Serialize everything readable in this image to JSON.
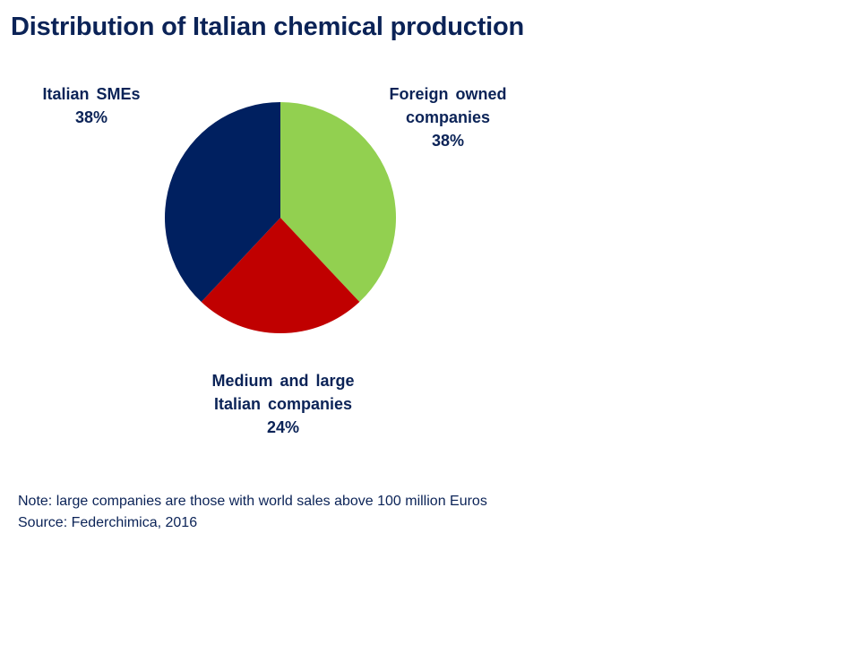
{
  "chart_data": {
    "type": "pie",
    "title": "Distribution of Italian chemical production",
    "slices": [
      {
        "name_lines": [
          "Foreign owned",
          "companies"
        ],
        "value": 38,
        "label": "38%",
        "color": "#92d050"
      },
      {
        "name_lines": [
          "Medium and large",
          "Italian companies"
        ],
        "value": 24,
        "label": "24%",
        "color": "#c00000"
      },
      {
        "name_lines": [
          "Italian SMEs"
        ],
        "value": 38,
        "label": "38%",
        "color": "#002060"
      }
    ],
    "unit": "%",
    "legend": "none"
  },
  "notes": {
    "note": "Note: large companies are those with world sales above 100 million Euros",
    "source": "Source: Federchimica, 2016"
  },
  "colors": {
    "text": "#0b2357"
  }
}
